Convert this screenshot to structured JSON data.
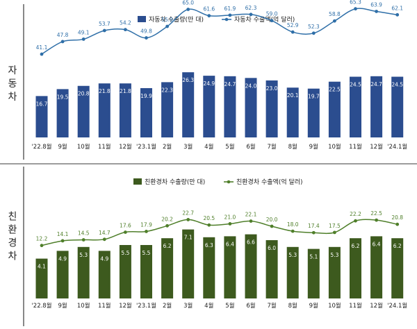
{
  "categories": [
    "'22.8월",
    "9월",
    "10월",
    "11월",
    "12월",
    "'23.1월",
    "2월",
    "3월",
    "4월",
    "5월",
    "6월",
    "7월",
    "8월",
    "9월",
    "10월",
    "11월",
    "12월",
    "'24.1월"
  ],
  "colors": {
    "auto_bar": "#2b4d8f",
    "auto_line": "#2f6fa8",
    "eco_bar": "#3d5a1e",
    "eco_line": "#4f7f2a",
    "divider": "#3a3a3a"
  },
  "chart_data": [
    {
      "type": "bar",
      "panel_label": "자동차",
      "categories": [
        "'22.8월",
        "9월",
        "10월",
        "11월",
        "12월",
        "'23.1월",
        "2월",
        "3월",
        "4월",
        "5월",
        "6월",
        "7월",
        "8월",
        "9월",
        "10월",
        "11월",
        "12월",
        "'24.1월"
      ],
      "series": [
        {
          "name": "자동차 수출량(만 대)",
          "kind": "bar",
          "values": [
            16.7,
            19.5,
            20.8,
            21.8,
            21.8,
            19.9,
            22.3,
            26.3,
            24.9,
            24.7,
            24.0,
            23.0,
            20.1,
            19.7,
            22.5,
            24.5,
            24.7,
            24.5
          ],
          "labels": [
            "16.7",
            "19.5",
            "20.8",
            "21.8",
            "21.8",
            "19.9",
            "22.3",
            "26.3",
            "24.9",
            "24.7",
            "24.0",
            "23.0",
            "20.1",
            "19.7",
            "22.5",
            "24.5",
            "24.7",
            "24.5"
          ]
        },
        {
          "name": "자동차 수출액(억 달러)",
          "kind": "line",
          "values": [
            41.1,
            47.8,
            49.1,
            53.7,
            54.2,
            49.8,
            55.9,
            65.0,
            61.6,
            61.9,
            62.3,
            59.0,
            52.9,
            52.3,
            58.8,
            65.3,
            63.9,
            62.1
          ],
          "labels": [
            "41.1",
            "47.8",
            "49.1",
            "53.7",
            "54.2",
            "49.8",
            "55.9",
            "65.0",
            "61.6",
            "61.9",
            "62.3",
            "59.0",
            "52.9",
            "52.3",
            "58.8",
            "65.3",
            "63.9",
            "62.1"
          ]
        }
      ],
      "legend_position": "top-center",
      "grid": false
    },
    {
      "type": "bar",
      "panel_label": "친환경차",
      "categories": [
        "'22.8월",
        "9월",
        "10월",
        "11월",
        "12월",
        "'23.1월",
        "2월",
        "3월",
        "4월",
        "5월",
        "6월",
        "7월",
        "8월",
        "9월",
        "10월",
        "11월",
        "12월",
        "'24.1월"
      ],
      "series": [
        {
          "name": "친환경차 수출량(만 대)",
          "kind": "bar",
          "values": [
            4.1,
            4.9,
            5.3,
            4.9,
            5.5,
            5.5,
            6.2,
            7.1,
            6.3,
            6.4,
            6.6,
            6.0,
            5.3,
            5.1,
            5.3,
            6.2,
            6.4,
            6.2
          ],
          "labels": [
            "4.1",
            "4.9",
            "5.3",
            "4.9",
            "5.5",
            "5.5",
            "6.2",
            "7.1",
            "6.3",
            "6.4",
            "6.6",
            "6.0",
            "5.3",
            "5.1",
            "5.3",
            "6.2",
            "6.4",
            "6.2"
          ]
        },
        {
          "name": "친환경차 수출액(억 달러)",
          "kind": "line",
          "values": [
            12.2,
            14.1,
            14.5,
            14.7,
            17.6,
            17.9,
            20.2,
            22.7,
            20.5,
            21.0,
            22.1,
            20.0,
            18.0,
            17.4,
            17.5,
            22.2,
            22.5,
            20.8
          ],
          "labels": [
            "12.2",
            "14.1",
            "14.5",
            "14.7",
            "17.6",
            "17.9",
            "20.2",
            "22.7",
            "20.5",
            "21.0",
            "22.1",
            "20.0",
            "18.0",
            "17.4",
            "17.5",
            "22.2",
            "22.5",
            "20.8"
          ]
        }
      ],
      "legend_position": "top-center",
      "grid": false
    }
  ]
}
